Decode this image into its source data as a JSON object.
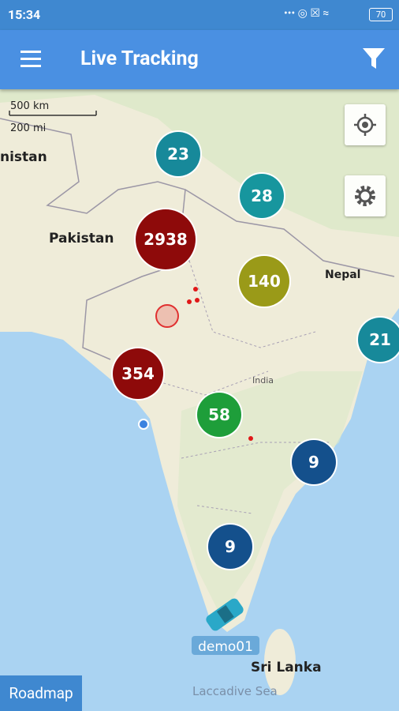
{
  "status_bar": {
    "time": "15:34",
    "battery": "70"
  },
  "app_bar": {
    "title": "Live Tracking"
  },
  "map": {
    "scale": {
      "km": "500 km",
      "mi": "200 mi"
    },
    "labels": [
      "nistan",
      "Pakistan",
      "Nepal",
      "India",
      "Sri Lanka",
      "Laccadive Sea"
    ],
    "clusters": [
      23,
      28,
      2938,
      140,
      21,
      354,
      58,
      9,
      9
    ],
    "vehicle": "demo01"
  },
  "roadmap_button": "Roadmap"
}
